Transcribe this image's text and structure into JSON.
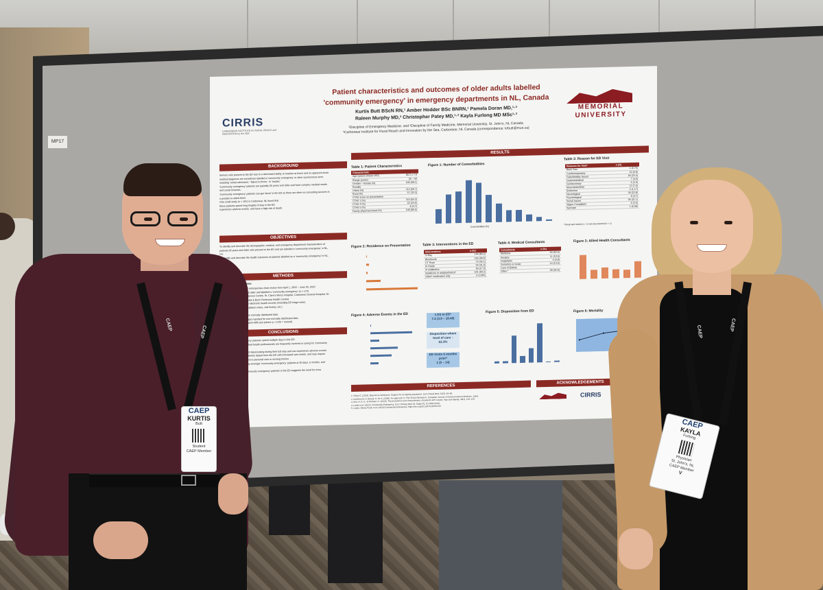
{
  "board": {
    "tag": "MP17"
  },
  "poster": {
    "title_line1": "Patient characteristics and outcomes of older adults labelled",
    "title_line2": "'community emergency' in emergency departments in NL, Canada",
    "authors_line1": "Kurtis Butt BScN RN,¹ Amber Hodder BSc BNRN,¹ Pamela Doran MD,¹·²",
    "authors_line2": "Raleen Murphy MD,² Christopher Patey MD,¹·³ Kayla Furlong MD MSc¹·³",
    "affil_line1": "¹Discipline of Emergency Medicine, and ²Discipline of Family Medicine, Memorial University, St. John's, NL Canada;",
    "affil_line2": "³Carbonear Institute for Rural Reach and Innovation by the Sea, Carbonear, NL Canada (correspondence: krbutt@mun.ca)",
    "logo_cirris": "CIRRIS",
    "logo_cirris_tag": "CARBONEAR INSTITUTE for RURAL REACH and INNOVATION by the SEA",
    "logo_mun_1": "MEMORIAL",
    "logo_mun_2": "UNIVERSITY",
    "sections": {
      "background": "BACKGROUND",
      "objectives": "OBJECTIVES",
      "methods": "METHODS",
      "conclusions": "CONCLUSIONS",
      "results": "RESULTS",
      "references": "REFERENCES",
      "acknowledgements": "ACKNOWLEDGEMENTS"
    },
    "methods_sub": "Study Design & Population:",
    "background_lines": [
      "Seniors who present to the ED due to a decreased ability to function at home and no apparent acute",
      "medical diagnosis are sometimes labelled a 'community emergency' or other synonymous term,",
      "including 'social admission,' 'failure to thrive,' or 'acopia.'",
      "'Community emergency' patients are typically 65 years and older and have complex medical needs",
      "and social histories.",
      "'Community emergency' patients can get 'stuck' in the ED as there are often no consulting services in",
      "a position to admit them.",
      "One small study (n = 101) in Carbonear, NL found that",
      "these patients spend long lengths of stay in the ED",
      "experience adverse events, and have a high risk of death."
    ],
    "objectives_lines": [
      "To identify and describe the demographic, medical, and emergency department characteristics of",
      "patients 65 years and older who present to the ED and are labelled a 'community emergency' in NL,",
      "CA.",
      "To identify and describe the health outcomes of patients labelled as a 'community emergency' in NL,",
      "CA."
    ],
    "methods_lines": [
      "Research ethics approved retrospective chart review from April 1, 2022 – June 30, 2023",
      "Patients aged 65 years and older and labelled a 'community emergency' (n = 173)",
      "Five EDs in NL (Health Sciences Centre, St. Clare's Mercy Hospital, Carbonear General Hospital, Dr.",
      "G.B. Cross Memorial Hospital & Burin Peninsula Health Centre)",
      "Chart data abstracted from electronic health records (including ED triage notes,",
      "records of treatment, consultation notes, visit history, etc.)",
      "Analysis:",
      "Means and SDs reported for normally distributed data",
      "Medians and IQR (and range) reported for non-normally distributed data",
      "Normality tested using Shapiro-Wilk test (where p > 0.05 = normal)"
    ],
    "conclusions_lines": [
      "Many 'community emergency' patients spend multiple days in the ED.",
      "Medical consultants and allied health professionals are frequently involved in caring for 'community",
      "emergency' patients.",
      "These patients are at risk of deteriorating during their ED stay and can experience adverse events.",
      "'Community emergency' patients depart from the ED with increased care needs, and may require",
      "home supports or placement in personal care or nursing homes.",
      "There is significant mortality amongst 'community emergency' patients at 30 days, 6 months, and",
      "1 year post-ED visit.",
      "The multicomplexity of 'community emergency' patients in the ED suggests the need for more",
      "seniors-friendly ED care."
    ],
    "table1": {
      "label": "Table 1:",
      "title": "Patient Characteristics",
      "header": [
        "Characteristic",
        ""
      ],
      "rows": [
        [
          "Age (years) (mean ±SD)",
          "80.2 ± 7.8"
        ],
        [
          "Range (years)",
          "65 – 99"
        ],
        [
          "Gender – female (%)",
          "100 (58.1)"
        ],
        [
          "Rurality",
          ""
        ],
        [
          "Urban (%)",
          "114 (66.7)"
        ],
        [
          "Rural (%)",
          "57 (33.3)"
        ],
        [
          "CTAS score on presentation",
          ""
        ],
        [
          "CTAS 1 (%)",
          "110 (64.3)"
        ],
        [
          "CTAS 4 (%)",
          "42 (24.6)"
        ],
        [
          "CTAS 5 (%)",
          "8 (4.7)"
        ],
        [
          "Family physician listed (%)",
          "148 (86.5)"
        ]
      ]
    },
    "figure1": {
      "label": "Figure 1:",
      "title": "Number of Comorbidities",
      "xlabel": "Comorbidities (%)"
    },
    "table2": {
      "label": "Table 2:",
      "title": "Reason for ED Visit",
      "header": [
        "Reasons for Visit*",
        "n (%)"
      ],
      "rows": [
        [
          "Back Pain",
          "1 (0.75)"
        ],
        [
          "Cardiorespiratory",
          "10 (5.8)"
        ],
        [
          "Falls/Mobility Issues",
          "40 (23.4)"
        ],
        [
          "Gastrointestinal",
          "7 (4.0)"
        ],
        [
          "Genitourinary",
          "5 (2.9)"
        ],
        [
          "Musculoskeletal",
          "13 (7.6)"
        ],
        [
          "Endocrine",
          "2 (1.17)"
        ],
        [
          "Neurological",
          "39 (22.8)"
        ],
        [
          "Psychological",
          "8 (4.7)"
        ],
        [
          "Social Issues",
          "36 (21.1)"
        ],
        [
          "Vague Complaints",
          "6 (3.5)"
        ],
        [
          "Syncope",
          "1 (0.58)"
        ]
      ],
      "note": "*Visual and needs (n = 1) not documented (n = 1)"
    },
    "figure2": {
      "label": "Figure 2:",
      "title": "Residence on Presentation"
    },
    "table3": {
      "label": "Table 3:",
      "title": "Interventions in the ED",
      "header": [
        "Interventions",
        "n (%)"
      ],
      "rows": [
        [
          "X-Ray",
          "144 (84.2)"
        ],
        [
          "Bloodwork",
          "155 (90.6)"
        ],
        [
          "CT Scan",
          "72 (42.1)"
        ],
        [
          "IV Fluids",
          "54 (31.6)"
        ],
        [
          "IV Antibiotics",
          "30 (17.5)"
        ],
        [
          "Sedatives or antipsychotics*",
          "101 (60.2)"
        ],
        [
          "Other* medication only",
          "6 (3.8%)"
        ]
      ]
    },
    "table4": {
      "label": "Table 4:",
      "title": "Medical Consultants",
      "header": [
        "Consultants",
        "n (%)"
      ],
      "rows": [
        [
          "Medicine",
          "64 (62.5)"
        ],
        [
          "Surgery",
          "11 (10.6)"
        ],
        [
          "Hospitalist",
          "4 (3.8)"
        ],
        [
          "Geriatrics or Acute",
          "14 (13.5)"
        ],
        [
          "Care of Elderly",
          ""
        ],
        [
          "Other *",
          "28 (26.9)"
        ]
      ]
    },
    "figure3": {
      "label": "Figure 3:",
      "title": "Allied Health Consultants"
    },
    "figure4": {
      "label": "Figure 4:",
      "title": "Adverse Events in the ED"
    },
    "los_box": {
      "line1": "LOS in ED*",
      "line2": "7.2 (3.9 – 18.49)"
    },
    "disposition_box": {
      "line1": "Disposition where",
      "line2": "level of care ↑",
      "line3": "62.3%"
    },
    "visits_box": {
      "line1": "ED Visits 6 months",
      "line2": "prior*",
      "line3": "1 (0 – 14)"
    },
    "figure5": {
      "label": "Figure 5:",
      "title": "Disposition from ED"
    },
    "figure6": {
      "label": "Figure 6:",
      "title": "Mortality"
    },
    "references": [
      "1. Patey C. (2019). Beyond an admission: Support for an ageing population. Can J Rural Med, 24(3), 93–96.",
      "2. Andrews M, H. Bryant, C. W. A. (2018). An approach to 'The Social Admission'. Canadian Journal of General Internal Medicine, 13(4).",
      "3. Kim, H. K. A., & Fridman, C. (2020). The prevalence and characteristics of patients with 'acopia'. Age and Ageing, 49(1), 120–125.",
      "4. Lamb et al. (2022). Community Emergency. Can J Emerg Med 24: Suppl S1, S1-S98 (2022).",
      "5. Lopes, Neves Paulo et al. (2023) Community Emergency. https://doi.org/10.1007/s11606-023"
    ]
  },
  "chart_data": [
    {
      "type": "bar",
      "title": "Number of Comorbidities",
      "xlabel": "Comorbidities (%)",
      "categories": [
        "1",
        "2",
        "3",
        "4",
        "5",
        "6",
        "7",
        "8",
        "9",
        "10",
        "11",
        "12"
      ],
      "values": [
        5.8,
        11.6,
        12.7,
        17.3,
        16.2,
        11.0,
        7.5,
        4.6,
        4.6,
        2.9,
        1.7,
        0.6
      ]
    },
    {
      "type": "bar",
      "title": "Residence on Presentation",
      "categories": [
        "Other",
        "Unknown",
        "LTC",
        "PCH",
        "Home"
      ],
      "values": [
        1.3,
        3.5,
        2.3,
        21.1,
        75.4
      ]
    },
    {
      "type": "bar",
      "title": "Allied Health Consultants",
      "values": [
        35.4,
        13.4,
        16.1,
        13.4,
        11.6,
        24.3
      ]
    },
    {
      "type": "bar",
      "title": "Adverse Events in the ED",
      "categories": [
        "Death",
        "Fall in ED",
        "Medication Error",
        "Pressure Ulcer",
        "Delirium",
        "Other"
      ],
      "values": [
        0.6,
        34.8,
        7.5,
        23.1,
        17.5,
        6.9
      ]
    },
    {
      "type": "bar",
      "title": "Disposition from ED",
      "values": [
        1.7,
        2.3,
        26.7,
        6.9,
        14.0,
        37.8,
        0.6,
        1.2
      ]
    },
    {
      "type": "area",
      "title": "Mortality",
      "categories": [
        "30 Days",
        "6 Months",
        "1 Year"
      ],
      "values": [
        14.6,
        22.0,
        25.1
      ]
    }
  ],
  "badges": {
    "left": {
      "org": "CAEP",
      "name": "KURTIS",
      "surname": "Butt",
      "role": "Student",
      "member": "CAEP Member"
    },
    "right": {
      "org": "CAEP",
      "name": "KAYLA",
      "surname": "Furlong",
      "role": "Physician",
      "place": "St. John's, NL",
      "member": "CAEP Member",
      "mark": "V"
    }
  },
  "lanyard_text": "CAEP"
}
